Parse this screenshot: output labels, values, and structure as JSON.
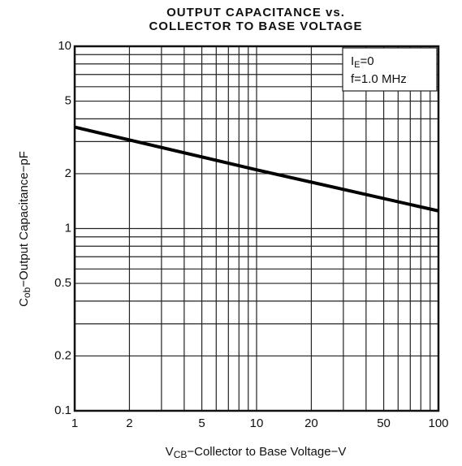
{
  "chart_data": {
    "type": "line",
    "title": [
      "OUTPUT CAPACITANCE vs.",
      "COLLECTOR TO BASE VOLTAGE"
    ],
    "xlabel": [
      "V",
      "CB",
      "−Collector to Base Voltage−V"
    ],
    "ylabel": [
      "C",
      "ob",
      "−Output Capacitance−pF"
    ],
    "annotation": [
      [
        "I",
        "E",
        "=0"
      ],
      "f=1.0 MHz"
    ],
    "x": [
      1,
      10,
      100
    ],
    "series": [
      {
        "color": "#000000",
        "values": [
          3.6,
          2.1,
          1.25
        ]
      }
    ],
    "log_x": true,
    "log_y": true,
    "xlim": [
      1,
      100
    ],
    "ylim": [
      0.1,
      10
    ],
    "xticks": [
      1,
      2,
      5,
      10,
      20,
      50,
      100
    ],
    "yticks": [
      0.1,
      0.2,
      0.5,
      1,
      2,
      5,
      10
    ],
    "xgrid": [
      1,
      2,
      3,
      4,
      5,
      6,
      7,
      8,
      9,
      10,
      20,
      30,
      40,
      50,
      60,
      70,
      80,
      90,
      100
    ],
    "ygrid": [
      0.1,
      0.2,
      0.3,
      0.4,
      0.5,
      0.6,
      0.7,
      0.8,
      0.9,
      1,
      2,
      3,
      4,
      5,
      6,
      7,
      8,
      9,
      10
    ],
    "grid": true
  }
}
